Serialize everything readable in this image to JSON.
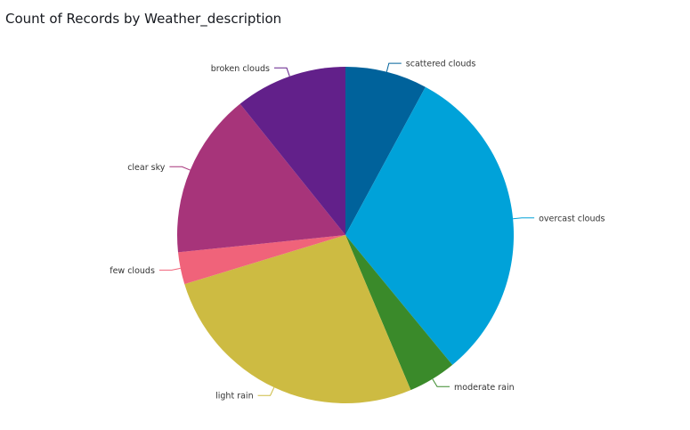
{
  "title": "Count of Records by Weather_description",
  "chart_data": {
    "type": "pie",
    "title": "Count of Records by Weather_description",
    "slices": [
      {
        "label": "scattered clouds",
        "value": 8.2,
        "color": "#00629b"
      },
      {
        "label": "overcast clouds",
        "value": 32.4,
        "color": "#00a2d9"
      },
      {
        "label": "moderate rain",
        "value": 4.8,
        "color": "#3a8a2a"
      },
      {
        "label": "light rain",
        "value": 27.7,
        "color": "#cdbb42"
      },
      {
        "label": "few clouds",
        "value": 3.2,
        "color": "#f0637a"
      },
      {
        "label": "clear sky",
        "value": 16.5,
        "color": "#a7347a"
      },
      {
        "label": "broken clouds",
        "value": 11.2,
        "color": "#62208a"
      }
    ]
  }
}
